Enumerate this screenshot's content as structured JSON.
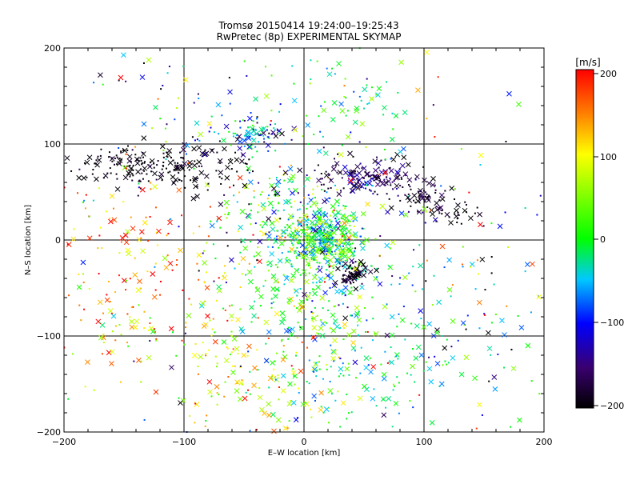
{
  "chart_data": {
    "type": "scatter",
    "title": "Tromsø 20150414 19:24:00–19:25:43",
    "subtitle": "RwPretec (8p) EXPERIMENTAL SKYMAP",
    "xlabel": "E–W location [km]",
    "ylabel": "N–S location [km]",
    "xlim": [
      -200,
      200
    ],
    "ylim": [
      -200,
      200
    ],
    "xticks": [
      "−200",
      "−100",
      "0",
      "100",
      "200"
    ],
    "yticks": [
      "200",
      "100",
      "0",
      "−100",
      "−200"
    ],
    "grid": true,
    "gridlines_x": [
      -100,
      0,
      100
    ],
    "gridlines_y": [
      -100,
      0,
      100
    ],
    "colorbar": {
      "unit": "[m/s]",
      "ticks": [
        "200",
        "100",
        "0",
        "−100",
        "−200"
      ],
      "range": [
        -200,
        200
      ],
      "colors": [
        "#000000",
        "#3a0070",
        "#0000ff",
        "#00c8ff",
        "#00ff00",
        "#ffff00",
        "#ff8000",
        "#ff0000"
      ]
    },
    "marker_types": [
      "x",
      "dot"
    ],
    "clusters": [
      {
        "x": 20,
        "y": 0,
        "sx": 15,
        "sy": 15,
        "n": 320,
        "v": -20,
        "dv": 55
      },
      {
        "x": 0,
        "y": -40,
        "sx": 35,
        "sy": 45,
        "n": 260,
        "v": 10,
        "dv": 60
      },
      {
        "x": -10,
        "y": 20,
        "sx": 25,
        "sy": 30,
        "n": 180,
        "v": 0,
        "dv": 70
      },
      {
        "x": 40,
        "y": -35,
        "sx": 6,
        "sy": 6,
        "n": 70,
        "v": -185,
        "dv": 15
      },
      {
        "x": 50,
        "y": 65,
        "sx": 25,
        "sy": 10,
        "n": 160,
        "v": -165,
        "dv": 30
      },
      {
        "x": -140,
        "y": 80,
        "sx": 25,
        "sy": 10,
        "n": 120,
        "v": -195,
        "dv": 10
      },
      {
        "x": -90,
        "y": 75,
        "sx": 25,
        "sy": 12,
        "n": 90,
        "v": -195,
        "dv": 10
      },
      {
        "x": -40,
        "y": 110,
        "sx": 15,
        "sy": 8,
        "n": 80,
        "v": -60,
        "dv": 60
      },
      {
        "x": 100,
        "y": 40,
        "sx": 12,
        "sy": 10,
        "n": 60,
        "v": -180,
        "dv": 20
      },
      {
        "x": 130,
        "y": 25,
        "sx": 10,
        "sy": 8,
        "n": 25,
        "v": -195,
        "dv": 10
      },
      {
        "x": 40,
        "y": 150,
        "sx": 25,
        "sy": 25,
        "n": 60,
        "v": -20,
        "dv": 40
      },
      {
        "x": -90,
        "y": 130,
        "sx": 40,
        "sy": 30,
        "n": 50,
        "v": -80,
        "dv": 90
      },
      {
        "x": -130,
        "y": -20,
        "sx": 40,
        "sy": 50,
        "n": 110,
        "v": 160,
        "dv": 50
      },
      {
        "x": -40,
        "y": -130,
        "sx": 40,
        "sy": 40,
        "n": 150,
        "v": 90,
        "dv": 60
      },
      {
        "x": 60,
        "y": -130,
        "sx": 50,
        "sy": 40,
        "n": 170,
        "v": -40,
        "dv": 40
      },
      {
        "x": -160,
        "y": -80,
        "sx": 30,
        "sy": 40,
        "n": 60,
        "v": 120,
        "dv": 80
      },
      {
        "x": 140,
        "y": -60,
        "sx": 40,
        "sy": 60,
        "n": 60,
        "v": -60,
        "dv": 120
      },
      {
        "x": 0,
        "y": 0,
        "sx": 110,
        "sy": 110,
        "n": 260,
        "v": 0,
        "dv": 120
      }
    ]
  }
}
